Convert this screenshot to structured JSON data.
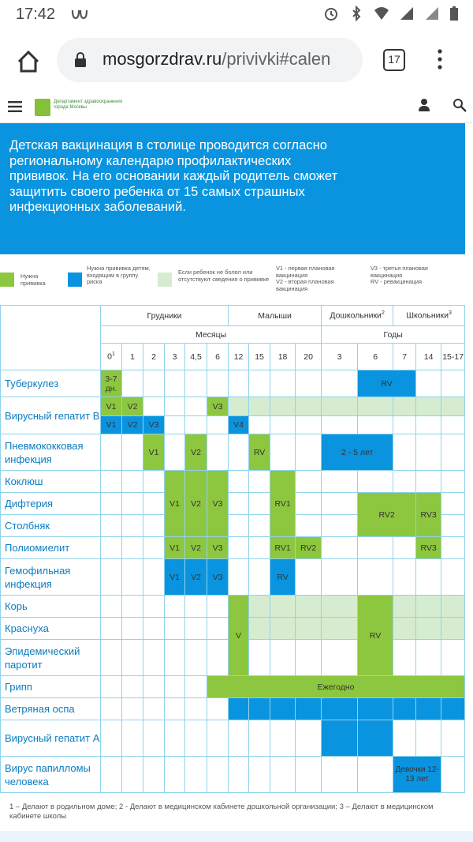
{
  "status": {
    "time": "17:42",
    "tabs_count": "17"
  },
  "browser": {
    "url_domain": "mosgorzdrav.ru",
    "url_path": "/privivki#calen"
  },
  "site": {
    "logo_text": "Департамент здравоохранения города Москвы"
  },
  "banner": {
    "text": "Детская вакцинация в столице проводится согласно региональному календарю профилактических прививок. На его основании каждый родитель сможет защитить своего ребенка от 15 самых страшных инфекционных заболеваний."
  },
  "legend": {
    "needed": "Нужна прививка",
    "needed_risk": "Нужна прививка детям, входящим в группу риска",
    "if_not_ill": "Если ребенок не болел или отсутствуют сведения о прививке",
    "v1": "V1 - первая плановая вакцинация",
    "v2": "V2 - вторая плановая вакцинация",
    "v3": "V3 - третья плановая вакцинация",
    "rv": "RV - ревакцинация"
  },
  "colors": {
    "green": "#8dc63f",
    "blue": "#0a94df",
    "light_green": "#d6ecd0"
  },
  "table": {
    "groups": {
      "infants": "Грудники",
      "toddlers": "Малыши",
      "preschool": "Дошкольники",
      "school": "Школьники",
      "sup_pre": "2",
      "sup_sch": "3"
    },
    "units": {
      "months": "Месяцы",
      "years": "Годы"
    },
    "ages": [
      "0",
      "1",
      "2",
      "3",
      "4,5",
      "6",
      "12",
      "15",
      "18",
      "20",
      "3",
      "6",
      "7",
      "14",
      "15-17"
    ],
    "age0_sup": "1",
    "rows": {
      "tb": "Туберкулез",
      "hepb": "Вирусный гепатит В",
      "pneumo": "Пневмококковая инфекция",
      "pertussis": "Коклюш",
      "diphtheria": "Дифтерия",
      "tetanus": "Столбняк",
      "polio": "Полиомиелит",
      "hib": "Гемофильная инфекция",
      "measles": "Корь",
      "rubella": "Краснуха",
      "mumps": "Эпидемический паротит",
      "flu": "Грипп",
      "varicella": "Ветряная оспа",
      "hepa": "Вирусный гепатит А",
      "hpv": "Вирус папилломы человека"
    },
    "cells": {
      "tb_0": "3-7 дн.",
      "tb_rv": "RV",
      "hepb_v1": "V1",
      "hepb_v2": "V2",
      "hepb_v3": "V3",
      "hepb_b_v1": "V1",
      "hepb_b_v2": "V2",
      "hepb_b_v3": "V3",
      "hepb_b_v4": "V4",
      "pn_v1": "V1",
      "pn_v2": "V2",
      "pn_rv": "RV",
      "pn_years": "2 - 5 лет",
      "dt_v1": "V1",
      "dt_v2": "V2",
      "dt_v3": "V3",
      "dt_rv1": "RV1",
      "dt_rv2": "RV2",
      "dt_rv3": "RV3",
      "po_v1": "V1",
      "po_v2": "V2",
      "po_v3": "V3",
      "po_rv1": "RV1",
      "po_rv2": "RV2",
      "po_rv3": "RV3",
      "hib_v1": "V1",
      "hib_v2": "V2",
      "hib_v3": "V3",
      "hib_rv": "RV",
      "mmr_v": "V",
      "mmr_rv": "RV",
      "flu": "Ежегодно",
      "hpv": "Девочки 12-13 лет"
    }
  },
  "footnote": "1 – Делают в родильном доме; 2 - Делают в медицинском кабинете дошкольной организации; 3 – Делают в медицинском кабинете школы"
}
